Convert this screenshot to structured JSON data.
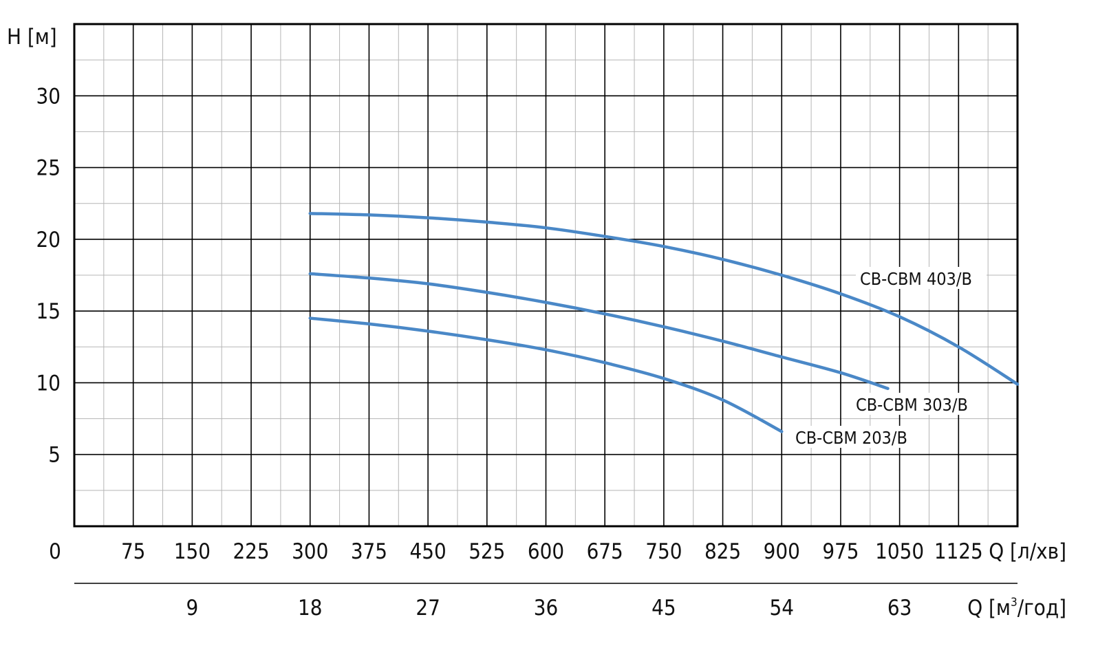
{
  "chart_data": {
    "type": "line",
    "ylabel": "H [м]",
    "xlabel": "Q [л/хв]",
    "x2label_prefix": "Q [м",
    "x2label_sup": "3",
    "x2label_suffix": "/год]",
    "xlim": [
      0,
      1200
    ],
    "ylim": [
      0,
      35
    ],
    "x_ticks": [
      0,
      75,
      150,
      225,
      300,
      375,
      450,
      525,
      600,
      675,
      750,
      825,
      900,
      975,
      1050,
      1125
    ],
    "y_ticks": [
      5,
      10,
      15,
      20,
      25,
      30
    ],
    "x2_ticks": [
      9,
      18,
      27,
      36,
      45,
      54,
      63
    ],
    "grid": true,
    "series": [
      {
        "name": "CB-CBM 403/B",
        "color": "#4a88c7",
        "x": [
          300,
          375,
          450,
          525,
          600,
          675,
          750,
          825,
          900,
          975,
          1050,
          1125,
          1200
        ],
        "y": [
          21.8,
          21.7,
          21.5,
          21.2,
          20.8,
          20.2,
          19.5,
          18.6,
          17.5,
          16.2,
          14.6,
          12.5,
          9.9
        ]
      },
      {
        "name": "CB-CBM 303/B",
        "color": "#4a88c7",
        "x": [
          300,
          375,
          450,
          525,
          600,
          675,
          750,
          825,
          900,
          975,
          1035
        ],
        "y": [
          17.6,
          17.3,
          16.9,
          16.3,
          15.6,
          14.8,
          13.9,
          12.9,
          11.8,
          10.7,
          9.6
        ]
      },
      {
        "name": "CB-CBM 203/B",
        "color": "#4a88c7",
        "x": [
          300,
          375,
          450,
          525,
          600,
          675,
          750,
          825,
          900
        ],
        "y": [
          14.5,
          14.1,
          13.6,
          13.0,
          12.3,
          11.4,
          10.3,
          8.8,
          6.6
        ]
      }
    ]
  }
}
